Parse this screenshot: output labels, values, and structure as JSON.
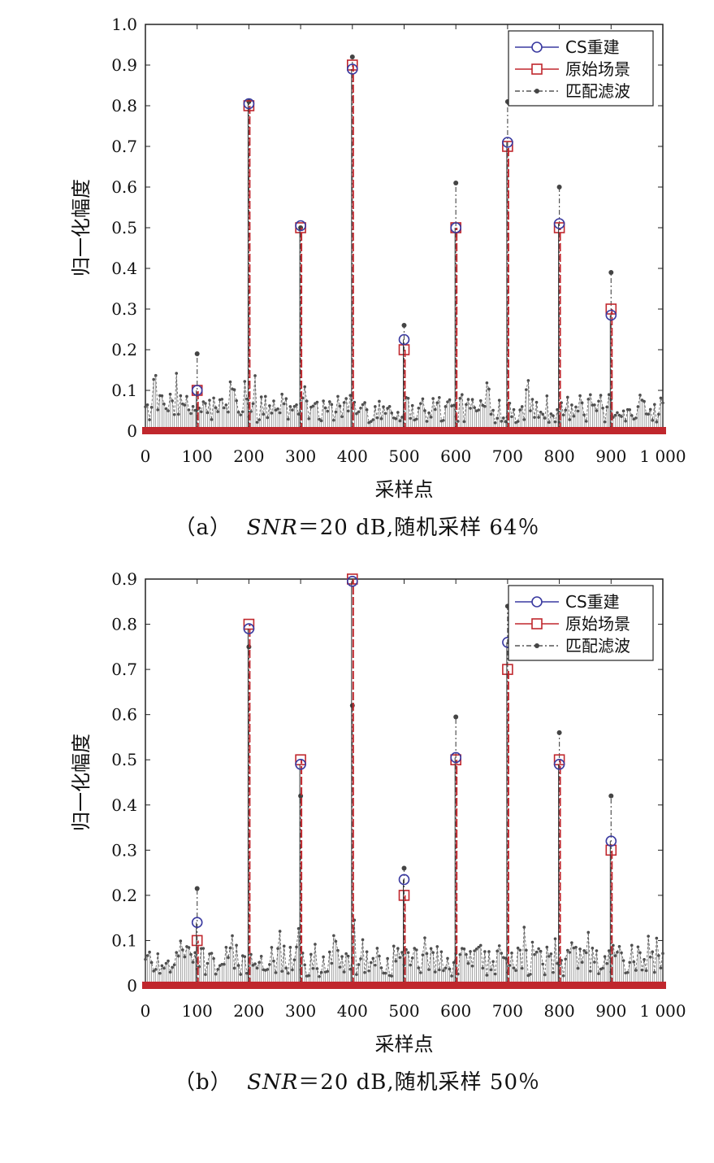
{
  "chart_data": [
    {
      "type": "line",
      "panel": "a",
      "caption": {
        "label": "（a）",
        "snr": "SNR",
        "rest": "＝20 dB,随机采样 64％"
      },
      "xlabel": "采样点",
      "ylabel": "归一化幅度",
      "xlim": [
        0,
        1000
      ],
      "ylim": [
        0,
        1.0
      ],
      "xticks": [
        0,
        100,
        200,
        300,
        400,
        500,
        600,
        700,
        800,
        900,
        1000
      ],
      "xtick_labels": [
        "0",
        "100",
        "200",
        "300",
        "400",
        "500",
        "600",
        "700",
        "800",
        "900",
        "1 000"
      ],
      "yticks": [
        0,
        0.1,
        0.2,
        0.3,
        0.4,
        0.5,
        0.6,
        0.7,
        0.8,
        0.9,
        1.0
      ],
      "ytick_labels": [
        "0",
        "0.1",
        "0.2",
        "0.3",
        "0.4",
        "0.5",
        "0.6",
        "0.7",
        "0.8",
        "0.9",
        "1.0"
      ],
      "legend_position": "top-right",
      "series": [
        {
          "name": "CS重建",
          "color": "#3a3aa0",
          "marker": "circle",
          "x": [
            100,
            200,
            300,
            400,
            500,
            600,
            700,
            800,
            900
          ],
          "values": [
            0.1,
            0.805,
            0.505,
            0.89,
            0.225,
            0.5,
            0.71,
            0.51,
            0.285
          ]
        },
        {
          "name": "原始场景",
          "color": "#c0272d",
          "marker": "square",
          "x": [
            100,
            200,
            300,
            400,
            500,
            600,
            700,
            800,
            900
          ],
          "values": [
            0.1,
            0.8,
            0.5,
            0.9,
            0.2,
            0.5,
            0.7,
            0.5,
            0.3
          ]
        },
        {
          "name": "匹配滤波",
          "color": "#555555",
          "marker": "dot",
          "x": [
            100,
            200,
            300,
            400,
            500,
            600,
            700,
            800,
            900
          ],
          "values": [
            0.19,
            0.81,
            0.5,
            0.92,
            0.26,
            0.61,
            0.81,
            0.6,
            0.39
          ]
        }
      ]
    },
    {
      "type": "line",
      "panel": "b",
      "caption": {
        "label": "（b）",
        "snr": "SNR",
        "rest": "＝20 dB,随机采样 50％"
      },
      "xlabel": "采样点",
      "ylabel": "归一化幅度",
      "xlim": [
        0,
        1000
      ],
      "ylim": [
        0,
        0.9
      ],
      "xticks": [
        0,
        100,
        200,
        300,
        400,
        500,
        600,
        700,
        800,
        900,
        1000
      ],
      "xtick_labels": [
        "0",
        "100",
        "200",
        "300",
        "400",
        "500",
        "600",
        "700",
        "800",
        "900",
        "1 000"
      ],
      "yticks": [
        0,
        0.1,
        0.2,
        0.3,
        0.4,
        0.5,
        0.6,
        0.7,
        0.8,
        0.9
      ],
      "ytick_labels": [
        "0",
        "0.1",
        "0.2",
        "0.3",
        "0.4",
        "0.5",
        "0.6",
        "0.7",
        "0.8",
        "0.9"
      ],
      "legend_position": "top-right",
      "series": [
        {
          "name": "CS重建",
          "color": "#3a3aa0",
          "marker": "circle",
          "x": [
            100,
            200,
            300,
            400,
            500,
            600,
            700,
            800,
            900
          ],
          "values": [
            0.14,
            0.79,
            0.49,
            0.895,
            0.235,
            0.505,
            0.76,
            0.49,
            0.32
          ]
        },
        {
          "name": "原始场景",
          "color": "#c0272d",
          "marker": "square",
          "x": [
            100,
            200,
            300,
            400,
            500,
            600,
            700,
            800,
            900
          ],
          "values": [
            0.1,
            0.8,
            0.5,
            0.9,
            0.2,
            0.5,
            0.7,
            0.5,
            0.3
          ]
        },
        {
          "name": "匹配滤波",
          "color": "#555555",
          "marker": "dot",
          "x": [
            100,
            200,
            300,
            400,
            500,
            600,
            700,
            800,
            900
          ],
          "values": [
            0.215,
            0.75,
            0.42,
            0.62,
            0.26,
            0.595,
            0.84,
            0.56,
            0.42
          ]
        }
      ]
    }
  ]
}
